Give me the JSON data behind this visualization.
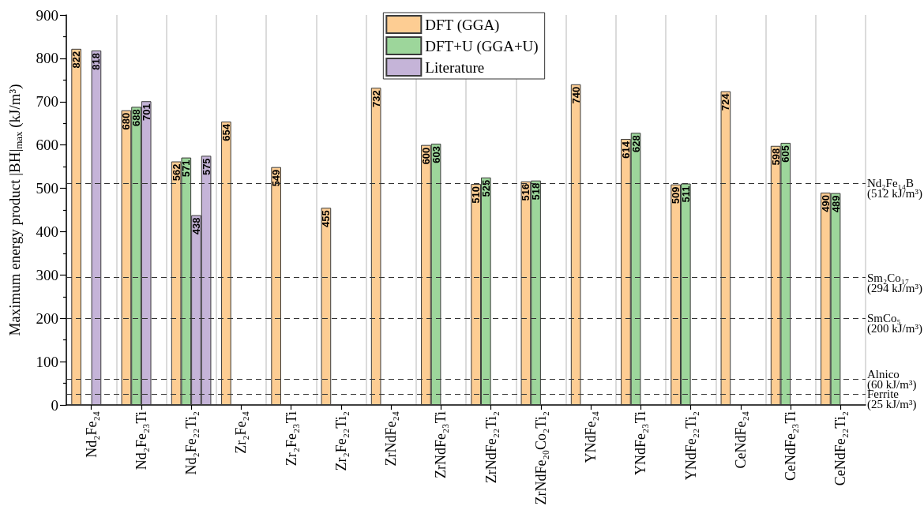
{
  "chart_data": {
    "type": "bar",
    "ylabel": "Maximum energy product |BH|$_{max}$ (kJ/m³)",
    "categories": [
      "Nd₂Fe₂₄",
      "Nd₂Fe₂₃Ti",
      "Nd₂Fe₂₂Ti₂",
      "Zr₂Fe₂₄",
      "Zr₂Fe₂₃Ti",
      "Zr₂Fe₂₂Ti₂",
      "ZrNdFe₂₄",
      "ZrNdFe₂₃Ti",
      "ZrNdFe₂₂Ti₂",
      "ZrNdFe₂₀Co₂Ti₂",
      "YNdFe₂₄",
      "YNdFe₂₃Ti",
      "YNdFe₂₂Ti₂",
      "CeNdFe₂₄",
      "CeNdFe₂₃Ti",
      "CeNdFe₂₂Ti₂"
    ],
    "series": [
      {
        "name": "DFT (GGA)",
        "color": "#fdcd93",
        "values": [
          822,
          680,
          562,
          654,
          549,
          455,
          732,
          600,
          510,
          516,
          740,
          614,
          509,
          724,
          598,
          490
        ]
      },
      {
        "name": "DFT+U (GGA+U)",
        "color": "#9dd69b",
        "values": [
          null,
          688,
          571,
          null,
          null,
          null,
          null,
          603,
          525,
          518,
          null,
          628,
          511,
          null,
          605,
          489
        ]
      },
      {
        "name": "Literature",
        "color": "#c5b4d8",
        "values": [
          818,
          701,
          438,
          null,
          null,
          null,
          null,
          null,
          null,
          null,
          null,
          null,
          null,
          null,
          null,
          null
        ]
      },
      {
        "color": "#c5b4d8",
        "values": [
          null,
          null,
          575,
          null,
          null,
          null,
          null,
          null,
          null,
          null,
          null,
          null,
          null,
          null,
          null,
          null
        ]
      }
    ],
    "ylim": [
      0,
      900
    ],
    "yticks": [
      0,
      {
        "value": 50,
        "label": null
      },
      100,
      {
        "value": 150,
        "label": null
      },
      200,
      {
        "value": 250,
        "label": null
      },
      300,
      {
        "value": 350,
        "label": null
      },
      400,
      {
        "value": 450,
        "label": null
      },
      500,
      {
        "value": 550,
        "label": null
      },
      600,
      {
        "value": 650,
        "label": null
      },
      700,
      {
        "value": 750,
        "label": null
      },
      800,
      {
        "value": 850,
        "label": null
      },
      900
    ],
    "ref_lines": [
      {
        "axis": "y",
        "value": 512,
        "label": "Nd₂Fe₁₄B\n(512 kJ/m³)",
        "color": "#333333",
        "line_style": "dashed"
      },
      {
        "axis": "y",
        "value": 294,
        "label": "Sm₂Co₁₇\n(294 kJ/m³)",
        "color": "#333333",
        "line_style": "dashed"
      },
      {
        "axis": "y",
        "value": 200,
        "label": "SmCo₅\n(200 kJ/m³)",
        "color": "#333333",
        "line_style": "dashed"
      },
      {
        "axis": "y",
        "value": 60,
        "label": "Alnico\n(60 kJ/m³)",
        "color": "#333333",
        "line_style": "dashed"
      },
      {
        "axis": "y",
        "value": 25,
        "label": "Ferrite\n(25 kJ/m³)",
        "color": "#333333",
        "line_style": "dashed"
      }
    ],
    "grid": "x",
    "legend": "top",
    "data_labels": true
  }
}
